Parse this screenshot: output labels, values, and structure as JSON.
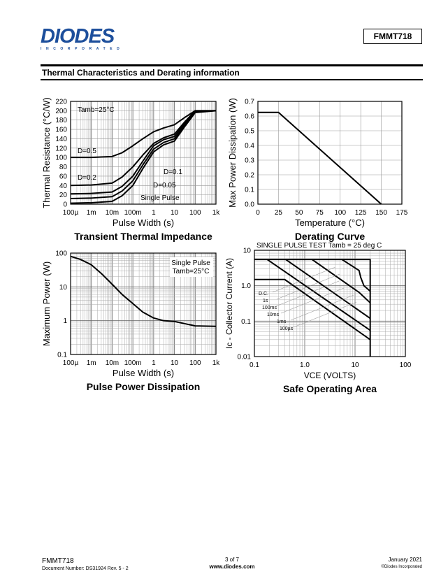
{
  "header": {
    "logo_text": "DIODES",
    "logo_sub": "INCORPORATED",
    "part_number": "FMMT718",
    "section_title": "Thermal Characteristics and Derating information"
  },
  "footer": {
    "part": "FMMT718",
    "doc_number": "Document Number:  DS31924 Rev. 5 - 2",
    "page": "3 of 7",
    "website": "www.diodes.com",
    "date": "January 2021",
    "copyright": "©Diodes Incorporated"
  },
  "chart_data": [
    {
      "type": "line",
      "title": "Transient Thermal Impedance",
      "xlabel": "Pulse Width (s)",
      "ylabel": "Thermal Resistance (°C/W)",
      "xscale": "log",
      "xlim": [
        0.0001,
        1000
      ],
      "ylim": [
        0,
        220
      ],
      "xticks": [
        "100µ",
        "1m",
        "10m",
        "100m",
        "1",
        "10",
        "100",
        "1k"
      ],
      "yticks": [
        "0",
        "20",
        "40",
        "60",
        "80",
        "100",
        "120",
        "140",
        "160",
        "180",
        "200",
        "220"
      ],
      "annotations": [
        "Tamb=25°C",
        "D=0.5",
        "D=0.2",
        "D=0.1",
        "D=0.05",
        "Single Pulse"
      ],
      "x": [
        0.0001,
        0.001,
        0.01,
        0.03,
        0.1,
        0.3,
        1,
        3,
        10,
        30,
        100,
        1000
      ],
      "series": [
        {
          "name": "D=0.5",
          "values": [
            100,
            100,
            102,
            110,
            125,
            140,
            155,
            163,
            170,
            185,
            200,
            200
          ]
        },
        {
          "name": "D=0.2",
          "values": [
            40,
            41,
            45,
            58,
            80,
            105,
            130,
            142,
            150,
            175,
            200,
            200
          ]
        },
        {
          "name": "D=0.1",
          "values": [
            22,
            23,
            26,
            38,
            60,
            92,
            125,
            138,
            145,
            172,
            199,
            200
          ]
        },
        {
          "name": "D=0.05",
          "values": [
            12,
            13,
            16,
            28,
            50,
            84,
            118,
            132,
            140,
            168,
            198,
            200
          ]
        },
        {
          "name": "Single Pulse",
          "values": [
            2,
            3,
            6,
            18,
            40,
            76,
            112,
            127,
            135,
            165,
            196,
            200
          ]
        }
      ]
    },
    {
      "type": "line",
      "title": "Derating Curve",
      "xlabel": "Temperature (°C)",
      "ylabel": "Max Power Dissipation (W)",
      "xlim": [
        0,
        175
      ],
      "ylim": [
        0,
        0.7
      ],
      "xticks": [
        "0",
        "25",
        "50",
        "75",
        "100",
        "125",
        "150",
        "175"
      ],
      "yticks": [
        "0.0",
        "0.1",
        "0.2",
        "0.3",
        "0.4",
        "0.5",
        "0.6",
        "0.7"
      ],
      "x": [
        0,
        25,
        150
      ],
      "series": [
        {
          "name": "Pmax",
          "values": [
            0.625,
            0.625,
            0
          ]
        }
      ]
    },
    {
      "type": "line",
      "title": "Pulse Power Dissipation",
      "xlabel": "Pulse Width (s)",
      "ylabel": "Maximum Power (W)",
      "xscale": "log",
      "yscale": "log",
      "xlim": [
        0.0001,
        1000
      ],
      "ylim": [
        0.1,
        100
      ],
      "xticks": [
        "100µ",
        "1m",
        "10m",
        "100m",
        "1",
        "10",
        "100",
        "1k"
      ],
      "yticks": [
        "0.1",
        "1",
        "10",
        "100"
      ],
      "annotations": [
        "Single Pulse",
        "Tamb=25°C"
      ],
      "x": [
        0.0001,
        0.0003,
        0.001,
        0.003,
        0.01,
        0.03,
        0.1,
        0.3,
        1,
        3,
        10,
        30,
        100,
        1000
      ],
      "series": [
        {
          "name": "Single Pulse",
          "values": [
            80,
            65,
            45,
            25,
            12,
            6,
            3.2,
            1.8,
            1.2,
            1.0,
            0.95,
            0.82,
            0.7,
            0.68
          ]
        }
      ]
    },
    {
      "type": "line",
      "title": "Safe Operating Area",
      "subtitle": "SINGLE PULSE TEST  Tamb = 25 deg C",
      "xlabel": "VCE (VOLTS)",
      "ylabel": "Ic - Collector Current (A)",
      "xscale": "log",
      "yscale": "log",
      "xlim": [
        0.1,
        100
      ],
      "ylim": [
        0.01,
        10
      ],
      "xticks": [
        "0.1",
        "1.0",
        "10",
        "100"
      ],
      "yticks": [
        "0.01",
        "0.1",
        "1.0",
        "10"
      ],
      "annotations": [
        "D.C.",
        "1s",
        "100ms",
        "10ms",
        "1ms",
        "100µs"
      ],
      "series": [
        {
          "name": "D.C.",
          "points": [
            [
              0.1,
              1.5
            ],
            [
              0.4,
              1.5
            ],
            [
              20,
              0.03
            ]
          ]
        },
        {
          "name": "1s",
          "points": [
            [
              0.18,
              5.5
            ],
            [
              20,
              0.055
            ]
          ]
        },
        {
          "name": "100ms",
          "points": [
            [
              0.42,
              5.5
            ],
            [
              20,
              0.12
            ]
          ]
        },
        {
          "name": "10ms",
          "points": [
            [
              1.4,
              5.5
            ],
            [
              12,
              0.65
            ],
            [
              20,
              0.33
            ]
          ]
        },
        {
          "name": "1ms",
          "points": [
            [
              5.5,
              5.5
            ],
            [
              12,
              2.7
            ],
            [
              13,
              1.7
            ],
            [
              15,
              1.0
            ],
            [
              20,
              0.7
            ]
          ]
        },
        {
          "name": "100µs",
          "points": [
            [
              0.1,
              5.5
            ],
            [
              20,
              5.5
            ],
            [
              20,
              0.01
            ]
          ]
        }
      ]
    }
  ]
}
